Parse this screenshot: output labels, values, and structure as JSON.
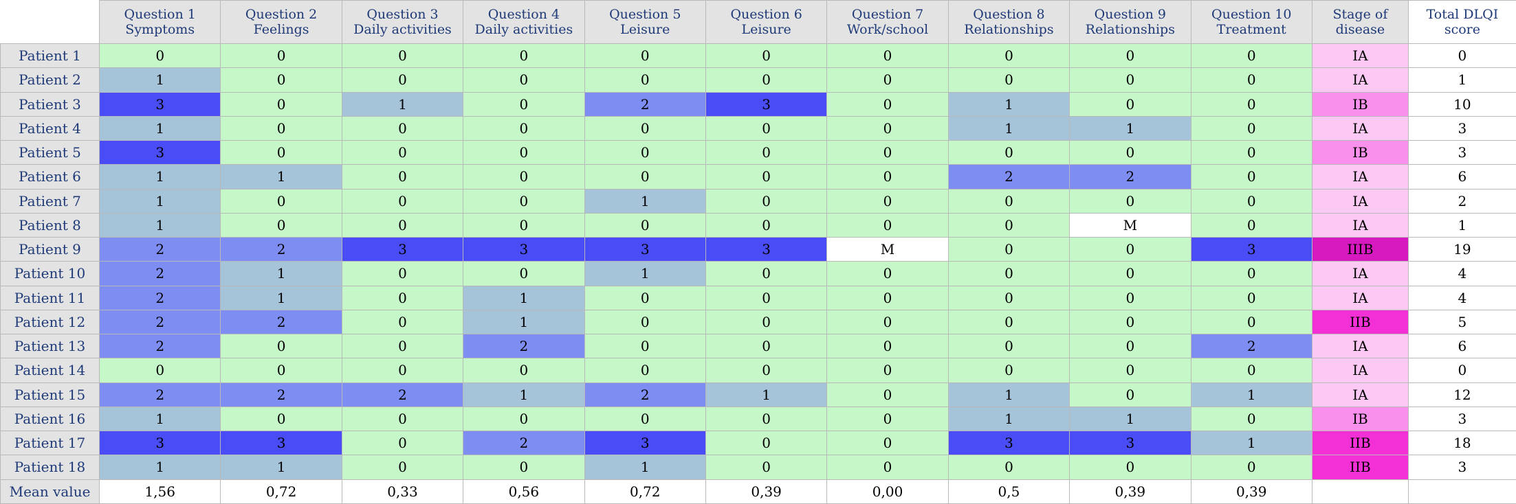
{
  "colors": {
    "v0": "#c6f7c8",
    "v1": "#a5c4da",
    "v2": "#7e8df2",
    "v3": "#4a4cf5",
    "missing": "#ffffff",
    "stage_IA": "#fcc8f4",
    "stage_IB": "#f890ec",
    "stage_IIB": "#f230d6",
    "stage_IIIB": "#d61ac0"
  },
  "columns": [
    {
      "line1": "Question 1",
      "line2": "Symptoms"
    },
    {
      "line1": "Question 2",
      "line2": "Feelings"
    },
    {
      "line1": "Question 3",
      "line2": "Daily activities"
    },
    {
      "line1": "Question 4",
      "line2": "Daily activities"
    },
    {
      "line1": "Question 5",
      "line2": "Leisure"
    },
    {
      "line1": "Question 6",
      "line2": "Leisure"
    },
    {
      "line1": "Question 7",
      "line2": "Work/school"
    },
    {
      "line1": "Question 8",
      "line2": "Relationships"
    },
    {
      "line1": "Question 9",
      "line2": "Relationships"
    },
    {
      "line1": "Question 10",
      "line2": "Treatment"
    }
  ],
  "stage_header": {
    "line1": "Stage of",
    "line2": "disease"
  },
  "total_header": {
    "line1": "Total DLQI",
    "line2": "score"
  },
  "rows": [
    {
      "label": "Patient 1",
      "values": [
        "0",
        "0",
        "0",
        "0",
        "0",
        "0",
        "0",
        "0",
        "0",
        "0"
      ],
      "stage": "IA",
      "total": "0"
    },
    {
      "label": "Patient 2",
      "values": [
        "1",
        "0",
        "0",
        "0",
        "0",
        "0",
        "0",
        "0",
        "0",
        "0"
      ],
      "stage": "IA",
      "total": "1"
    },
    {
      "label": "Patient 3",
      "values": [
        "3",
        "0",
        "1",
        "0",
        "2",
        "3",
        "0",
        "1",
        "0",
        "0"
      ],
      "stage": "IB",
      "total": "10"
    },
    {
      "label": "Patient 4",
      "values": [
        "1",
        "0",
        "0",
        "0",
        "0",
        "0",
        "0",
        "1",
        "1",
        "0"
      ],
      "stage": "IA",
      "total": "3"
    },
    {
      "label": "Patient 5",
      "values": [
        "3",
        "0",
        "0",
        "0",
        "0",
        "0",
        "0",
        "0",
        "0",
        "0"
      ],
      "stage": "IB",
      "total": "3"
    },
    {
      "label": "Patient 6",
      "values": [
        "1",
        "1",
        "0",
        "0",
        "0",
        "0",
        "0",
        "2",
        "2",
        "0"
      ],
      "stage": "IA",
      "total": "6"
    },
    {
      "label": "Patient 7",
      "values": [
        "1",
        "0",
        "0",
        "0",
        "1",
        "0",
        "0",
        "0",
        "0",
        "0"
      ],
      "stage": "IA",
      "total": "2"
    },
    {
      "label": "Patient 8",
      "values": [
        "1",
        "0",
        "0",
        "0",
        "0",
        "0",
        "0",
        "0",
        "M",
        "0"
      ],
      "stage": "IA",
      "total": "1"
    },
    {
      "label": "Patient 9",
      "values": [
        "2",
        "2",
        "3",
        "3",
        "3",
        "3",
        "M",
        "0",
        "0",
        "3"
      ],
      "stage": "IIIB",
      "total": "19"
    },
    {
      "label": "Patient 10",
      "values": [
        "2",
        "1",
        "0",
        "0",
        "1",
        "0",
        "0",
        "0",
        "0",
        "0"
      ],
      "stage": "IA",
      "total": "4"
    },
    {
      "label": "Patient 11",
      "values": [
        "2",
        "1",
        "0",
        "1",
        "0",
        "0",
        "0",
        "0",
        "0",
        "0"
      ],
      "stage": "IA",
      "total": "4"
    },
    {
      "label": "Patient 12",
      "values": [
        "2",
        "2",
        "0",
        "1",
        "0",
        "0",
        "0",
        "0",
        "0",
        "0"
      ],
      "stage": "IIB",
      "total": "5"
    },
    {
      "label": "Patient 13",
      "values": [
        "2",
        "0",
        "0",
        "2",
        "0",
        "0",
        "0",
        "0",
        "0",
        "2"
      ],
      "stage": "IA",
      "total": "6"
    },
    {
      "label": "Patient 14",
      "values": [
        "0",
        "0",
        "0",
        "0",
        "0",
        "0",
        "0",
        "0",
        "0",
        "0"
      ],
      "stage": "IA",
      "total": "0"
    },
    {
      "label": "Patient 15",
      "values": [
        "2",
        "2",
        "2",
        "1",
        "2",
        "1",
        "0",
        "1",
        "0",
        "1"
      ],
      "stage": "IA",
      "total": "12"
    },
    {
      "label": "Patient 16",
      "values": [
        "1",
        "0",
        "0",
        "0",
        "0",
        "0",
        "0",
        "1",
        "1",
        "0"
      ],
      "stage": "IB",
      "total": "3"
    },
    {
      "label": "Patient 17",
      "values": [
        "3",
        "3",
        "0",
        "2",
        "3",
        "0",
        "0",
        "3",
        "3",
        "1"
      ],
      "stage": "IIB",
      "total": "18"
    },
    {
      "label": "Patient 18",
      "values": [
        "1",
        "1",
        "0",
        "0",
        "1",
        "0",
        "0",
        "0",
        "0",
        "0"
      ],
      "stage": "IIB",
      "total": "3"
    }
  ],
  "mean_row": {
    "label": "Mean value",
    "values": [
      "1,56",
      "0,72",
      "0,33",
      "0,56",
      "0,72",
      "0,39",
      "0,00",
      "0,5",
      "0,39",
      "0,39"
    ],
    "stage": "",
    "total": ""
  }
}
